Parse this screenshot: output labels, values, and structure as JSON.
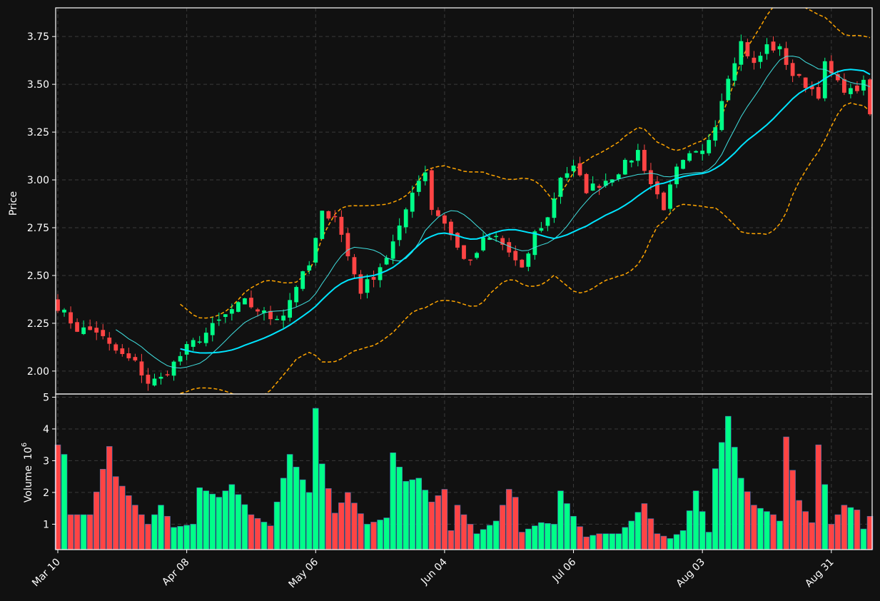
{
  "chart_data": {
    "type": "candlestick",
    "colors": {
      "up": "#00ff88",
      "down": "#ff4444",
      "sma_short": "#40e0e0",
      "sma_long": "#00e5ff",
      "band": "#ffa500",
      "background": "#111111"
    },
    "price_panel": {
      "ylabel": "Price",
      "yticks": [
        2.0,
        2.25,
        2.5,
        2.75,
        3.0,
        3.25,
        3.5,
        3.75
      ],
      "ylim": [
        1.88,
        3.9
      ]
    },
    "volume_panel": {
      "ylabel": "Volume",
      "ylabel_exponent": "6",
      "yticks": [
        1,
        2,
        3,
        4,
        5
      ],
      "ylim": [
        0.2,
        5.1
      ]
    },
    "x_tick_labels": [
      {
        "label": "Mar 10",
        "index": 0
      },
      {
        "label": "Apr 08",
        "index": 20
      },
      {
        "label": "May 06",
        "index": 40
      },
      {
        "label": "Jun 04",
        "index": 60
      },
      {
        "label": "Jul 06",
        "index": 80
      },
      {
        "label": "Aug 03",
        "index": 100
      },
      {
        "label": "Aug 31",
        "index": 120
      }
    ],
    "anchors": {
      "close": [
        [
          0,
          2.34
        ],
        [
          3,
          2.22
        ],
        [
          6,
          2.21
        ],
        [
          8,
          2.13
        ],
        [
          10,
          2.08
        ],
        [
          12,
          2.04
        ],
        [
          14,
          1.94
        ],
        [
          16,
          1.96
        ],
        [
          18,
          2.04
        ],
        [
          20,
          2.12
        ],
        [
          23,
          2.2
        ],
        [
          25,
          2.26
        ],
        [
          27,
          2.32
        ],
        [
          29,
          2.36
        ],
        [
          31,
          2.32
        ],
        [
          33,
          2.28
        ],
        [
          35,
          2.3
        ],
        [
          37,
          2.45
        ],
        [
          39,
          2.55
        ],
        [
          41,
          2.82
        ],
        [
          43,
          2.82
        ],
        [
          45,
          2.6
        ],
        [
          47,
          2.42
        ],
        [
          49,
          2.5
        ],
        [
          51,
          2.6
        ],
        [
          53,
          2.74
        ],
        [
          55,
          2.95
        ],
        [
          57,
          3.05
        ],
        [
          58,
          2.85
        ],
        [
          60,
          2.78
        ],
        [
          62,
          2.64
        ],
        [
          64,
          2.56
        ],
        [
          66,
          2.68
        ],
        [
          68,
          2.7
        ],
        [
          70,
          2.62
        ],
        [
          72,
          2.52
        ],
        [
          74,
          2.72
        ],
        [
          76,
          2.8
        ],
        [
          78,
          3.02
        ],
        [
          80,
          3.06
        ],
        [
          82,
          2.95
        ],
        [
          84,
          2.98
        ],
        [
          86,
          3.02
        ],
        [
          88,
          3.08
        ],
        [
          90,
          3.15
        ],
        [
          92,
          2.98
        ],
        [
          94,
          2.86
        ],
        [
          96,
          3.05
        ],
        [
          98,
          3.12
        ],
        [
          100,
          3.14
        ],
        [
          102,
          3.3
        ],
        [
          104,
          3.55
        ],
        [
          106,
          3.72
        ],
        [
          108,
          3.6
        ],
        [
          110,
          3.7
        ],
        [
          112,
          3.68
        ],
        [
          114,
          3.55
        ],
        [
          116,
          3.5
        ],
        [
          118,
          3.45
        ],
        [
          119,
          3.6
        ],
        [
          121,
          3.5
        ],
        [
          123,
          3.46
        ],
        [
          125,
          3.5
        ],
        [
          126,
          3.34
        ]
      ],
      "volume": [
        [
          0,
          3.5
        ],
        [
          1,
          3.2
        ],
        [
          2,
          1.3
        ],
        [
          5,
          1.3
        ],
        [
          8,
          3.45
        ],
        [
          9,
          2.5
        ],
        [
          12,
          1.6
        ],
        [
          14,
          1.0
        ],
        [
          16,
          1.6
        ],
        [
          18,
          0.9
        ],
        [
          21,
          1.0
        ],
        [
          22,
          2.15
        ],
        [
          25,
          1.85
        ],
        [
          27,
          2.25
        ],
        [
          30,
          1.3
        ],
        [
          33,
          0.95
        ],
        [
          36,
          3.2
        ],
        [
          39,
          2.0
        ],
        [
          40,
          4.65
        ],
        [
          41,
          2.9
        ],
        [
          43,
          1.35
        ],
        [
          45,
          2.0
        ],
        [
          48,
          1.0
        ],
        [
          51,
          1.2
        ],
        [
          52,
          3.25
        ],
        [
          54,
          2.35
        ],
        [
          56,
          2.45
        ],
        [
          58,
          1.7
        ],
        [
          60,
          2.1
        ],
        [
          61,
          0.8
        ],
        [
          62,
          1.6
        ],
        [
          65,
          0.7
        ],
        [
          68,
          1.1
        ],
        [
          70,
          2.1
        ],
        [
          71,
          1.85
        ],
        [
          72,
          0.75
        ],
        [
          75,
          1.05
        ],
        [
          77,
          1.0
        ],
        [
          78,
          2.05
        ],
        [
          80,
          1.25
        ],
        [
          82,
          0.6
        ],
        [
          84,
          0.7
        ],
        [
          87,
          0.7
        ],
        [
          89,
          1.1
        ],
        [
          91,
          1.65
        ],
        [
          93,
          0.7
        ],
        [
          95,
          0.55
        ],
        [
          97,
          0.8
        ],
        [
          99,
          2.05
        ],
        [
          101,
          0.75
        ],
        [
          102,
          2.75
        ],
        [
          104,
          4.4
        ],
        [
          106,
          2.45
        ],
        [
          108,
          1.6
        ],
        [
          111,
          1.3
        ],
        [
          112,
          1.1
        ],
        [
          113,
          3.75
        ],
        [
          114,
          2.7
        ],
        [
          115,
          1.75
        ],
        [
          117,
          1.05
        ],
        [
          118,
          3.5
        ],
        [
          120,
          1.0
        ],
        [
          122,
          1.6
        ],
        [
          124,
          1.45
        ],
        [
          125,
          0.85
        ],
        [
          126,
          1.25
        ]
      ]
    },
    "series": [
      {
        "type": "ohlc"
      },
      {
        "type": "line",
        "style": "thin",
        "window": 10
      },
      {
        "type": "line",
        "style": "thick",
        "window": 20
      },
      {
        "type": "band",
        "style": "dashed",
        "window": 20,
        "k": 2
      }
    ]
  }
}
